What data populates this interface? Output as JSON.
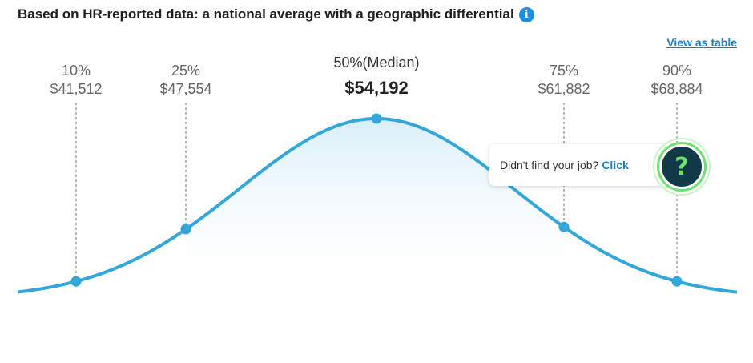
{
  "header": {
    "title": "Based on HR-reported data: a national average with a geographic differential",
    "info_icon": "info-icon",
    "view_table_label": "View as table"
  },
  "chart_data": {
    "type": "area",
    "title": "Based on HR-reported data: a national average with a geographic differential",
    "distribution": "bell-curve",
    "percentiles": [
      {
        "label": "10%",
        "value_label": "$41,512",
        "value": 41512
      },
      {
        "label": "25%",
        "value_label": "$47,554",
        "value": 47554
      },
      {
        "label": "50%(Median)",
        "value_label": "$54,192",
        "value": 54192
      },
      {
        "label": "75%",
        "value_label": "$61,882",
        "value": 61882
      },
      {
        "label": "90%",
        "value_label": "$68,884",
        "value": 68884
      }
    ],
    "colors": {
      "curve": "#33a7d9",
      "fill_top": "#d6eef9",
      "guide": "#888888"
    }
  },
  "help_card": {
    "text": "Didn't find your job?",
    "link": "Click",
    "icon": "help-question-icon",
    "icon_glyph": "?"
  }
}
